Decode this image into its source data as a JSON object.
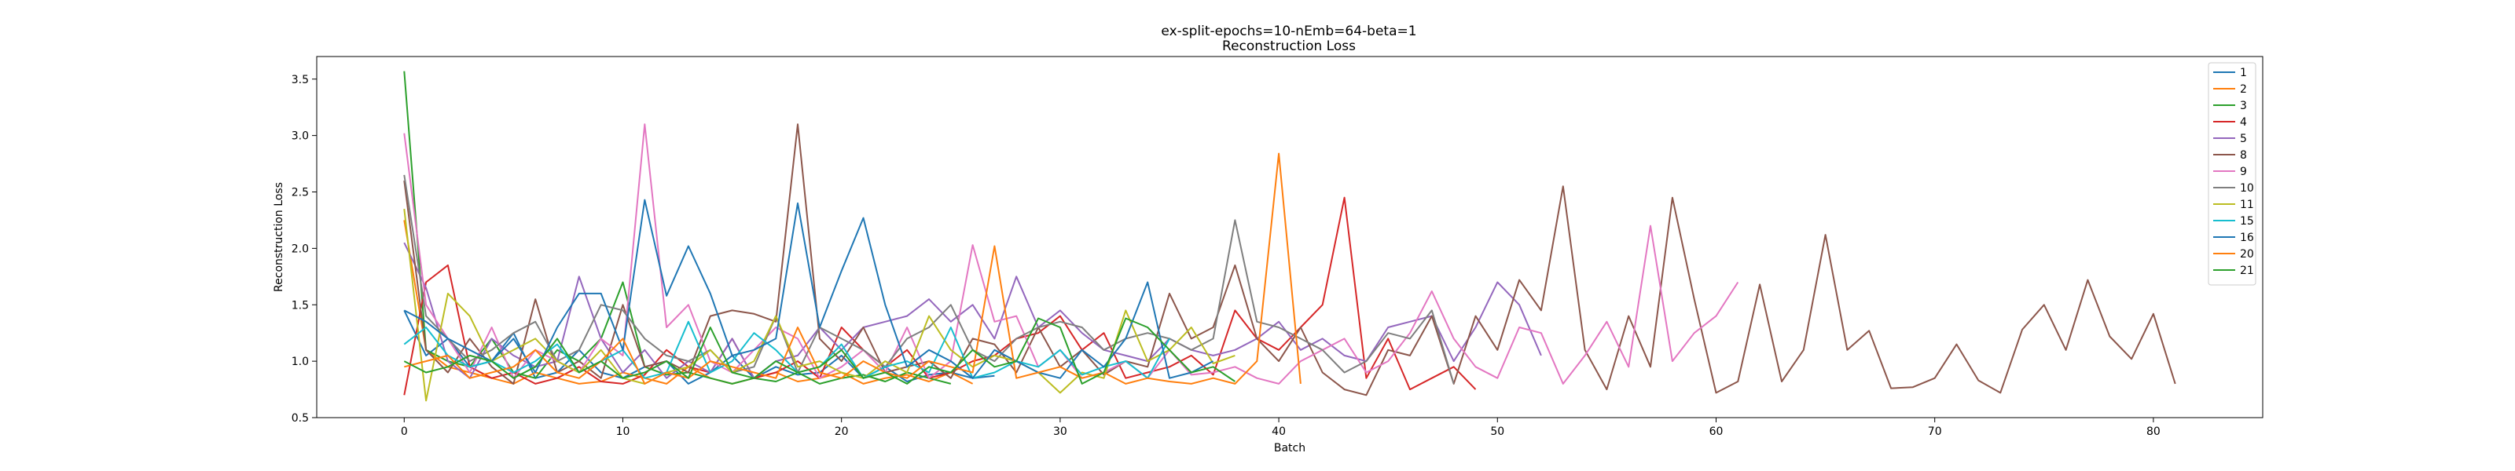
{
  "chart_data": {
    "type": "line",
    "title": "ex-split-epochs=10-nEmb=64-beta=1",
    "subtitle": "Reconstruction Loss",
    "xlabel": "Batch",
    "ylabel": "Reconstruction Loss",
    "xlim": [
      -4,
      85
    ],
    "ylim": [
      0.5,
      3.7
    ],
    "xticks": [
      0,
      10,
      20,
      30,
      40,
      50,
      60,
      70,
      80
    ],
    "yticks": [
      0.5,
      1.0,
      1.5,
      2.0,
      2.5,
      3.0,
      3.5
    ],
    "legend_position": "top-right",
    "grid": false,
    "series": [
      {
        "name": "1",
        "color": "#1f77b4",
        "values": [
          1.45,
          1.05,
          1.2,
          0.95,
          1.0,
          1.25,
          0.85,
          0.9,
          1.1,
          0.9,
          0.85,
          0.95,
          1.0,
          0.8,
          0.9,
          1.05,
          0.85,
          0.95,
          0.88,
          0.9,
          1.05,
          0.85,
          0.95,
          0.82,
          0.88,
          0.9,
          0.85,
          0.87
        ]
      },
      {
        "name": "2",
        "color": "#ff7f0e",
        "values": [
          2.25,
          1.1,
          0.95,
          0.9,
          0.85,
          0.8,
          0.9,
          0.85,
          0.8,
          0.82,
          0.9,
          0.85,
          0.8,
          0.95,
          0.85,
          0.8,
          0.85,
          0.9,
          0.82,
          0.85,
          0.9,
          0.8,
          0.85,
          0.88,
          0.82,
          0.9,
          0.8
        ]
      },
      {
        "name": "3",
        "color": "#2ca02c",
        "values": [
          3.57,
          1.1,
          1.0,
          0.95,
          1.2,
          0.9,
          0.85,
          1.1,
          1.0,
          1.2,
          1.7,
          0.95,
          0.88,
          0.9,
          0.85,
          0.8,
          0.85,
          0.82,
          0.9,
          0.8,
          0.85,
          0.88,
          0.82,
          0.9,
          0.85,
          0.8
        ]
      },
      {
        "name": "4",
        "color": "#d62728",
        "values": [
          0.7,
          1.7,
          1.85,
          0.95,
          0.85,
          0.9,
          0.8,
          0.85,
          0.95,
          0.82,
          0.8,
          0.88,
          1.1,
          0.95,
          0.9,
          1.2,
          0.85,
          0.9,
          1.0,
          0.85,
          1.3,
          1.1,
          0.95,
          1.1,
          0.85,
          0.9,
          1.0,
          1.05,
          1.2,
          1.25,
          1.4,
          1.1,
          1.25,
          0.85,
          0.9,
          0.95,
          1.05,
          0.88,
          1.45,
          1.2,
          1.1,
          1.3,
          1.5,
          2.45,
          0.85,
          1.2,
          0.75,
          0.85,
          0.95,
          0.75
        ]
      },
      {
        "name": "5",
        "color": "#9467bd",
        "values": [
          2.05,
          1.65,
          1.0,
          0.85,
          1.2,
          1.05,
          0.95,
          1.0,
          1.75,
          1.2,
          0.9,
          1.1,
          0.85,
          1.0,
          0.9,
          1.2,
          0.85,
          1.0,
          1.05,
          1.3,
          1.1,
          1.3,
          1.35,
          1.4,
          1.55,
          1.35,
          1.5,
          1.2,
          1.75,
          1.3,
          1.45,
          1.25,
          1.1,
          1.05,
          1.0,
          1.2,
          1.1,
          1.05,
          1.1,
          1.2,
          1.35,
          1.1,
          1.2,
          1.05,
          1.0,
          1.3,
          1.35,
          1.4,
          1.0,
          1.3,
          1.7,
          1.5,
          1.05
        ]
      },
      {
        "name": "8",
        "color": "#8c564b",
        "values": [
          2.6,
          1.1,
          0.9,
          1.2,
          0.95,
          0.8,
          1.55,
          0.9,
          1.0,
          0.85,
          1.5,
          0.95,
          1.0,
          0.9,
          1.4,
          1.45,
          1.42,
          1.35,
          3.1,
          1.2,
          1.0,
          1.3,
          0.9,
          0.95,
          1.0,
          0.85,
          1.2,
          1.15,
          0.9,
          1.3,
          0.95,
          1.1,
          0.88,
          1.0,
          0.95,
          1.6,
          1.2,
          1.3,
          1.85,
          1.2,
          1.0,
          1.3,
          0.9,
          0.75,
          0.7,
          1.1,
          1.05,
          1.4,
          0.8,
          1.4,
          1.1,
          1.72,
          1.45,
          2.55,
          1.1,
          0.75,
          1.4,
          0.95,
          2.45,
          1.55,
          0.72,
          0.82,
          1.68,
          0.82,
          1.1,
          2.12,
          1.1,
          1.27,
          0.76,
          0.77,
          0.85,
          1.15,
          0.83,
          0.72,
          1.28,
          1.5,
          1.1,
          1.72,
          1.22,
          1.02,
          1.42,
          0.8
        ]
      },
      {
        "name": "9",
        "color": "#e377c2",
        "values": [
          3.02,
          1.5,
          1.2,
          0.9,
          1.3,
          0.85,
          1.1,
          1.0,
          0.9,
          1.2,
          1.05,
          3.1,
          1.3,
          1.5,
          1.0,
          0.9,
          1.1,
          1.3,
          1.2,
          0.85,
          0.95,
          1.1,
          0.9,
          1.3,
          0.85,
          1.0,
          2.03,
          1.35,
          1.4,
          0.95,
          1.1,
          0.85,
          0.9,
          1.0,
          0.85,
          1.1,
          0.88,
          0.9,
          0.95,
          0.85,
          0.8,
          1.0,
          1.1,
          1.2,
          0.9,
          1.0,
          1.25,
          1.62,
          1.2,
          0.95,
          0.85,
          1.3,
          1.25,
          0.8,
          1.05,
          1.35,
          0.95,
          2.2,
          1.0,
          1.25,
          1.4,
          1.7
        ]
      },
      {
        "name": "10",
        "color": "#7f7f7f",
        "values": [
          2.65,
          1.4,
          1.2,
          1.0,
          1.1,
          1.25,
          1.35,
          1.0,
          1.1,
          1.5,
          1.45,
          1.2,
          1.05,
          1.0,
          1.1,
          0.9,
          0.95,
          1.4,
          0.9,
          1.3,
          1.2,
          1.1,
          0.95,
          1.2,
          1.3,
          1.5,
          1.1,
          1.0,
          1.2,
          1.3,
          1.35,
          1.3,
          1.1,
          1.2,
          1.25,
          1.2,
          1.1,
          1.2,
          2.25,
          1.35,
          1.3,
          1.2,
          1.1,
          0.9,
          1.0,
          1.25,
          1.2,
          1.45,
          0.8
        ]
      },
      {
        "name": "11",
        "color": "#bcbd22",
        "values": [
          2.35,
          0.65,
          1.6,
          1.4,
          1.0,
          1.1,
          1.2,
          1.0,
          0.9,
          1.1,
          0.85,
          0.8,
          0.9,
          0.95,
          1.1,
          0.9,
          1.0,
          1.4,
          0.95,
          1.0,
          0.9,
          0.85,
          1.0,
          0.9,
          1.4,
          1.1,
          0.95,
          1.05,
          1.0,
          0.9,
          0.72,
          0.9,
          0.85,
          1.45,
          1.0,
          1.1,
          1.3,
          0.98,
          1.05
        ]
      },
      {
        "name": "15",
        "color": "#17becf",
        "values": [
          1.15,
          1.3,
          1.05,
          0.95,
          1.0,
          0.9,
          1.0,
          1.15,
          0.9,
          1.0,
          1.1,
          0.85,
          0.9,
          1.35,
          0.9,
          1.0,
          1.25,
          1.1,
          0.9,
          0.95,
          1.15,
          0.85,
          0.95,
          1.0,
          0.9,
          1.3,
          0.85,
          0.9,
          1.0,
          0.95,
          1.1,
          0.88,
          0.95,
          1.0,
          0.85,
          1.2
        ]
      },
      {
        "name": "16",
        "color": "#1f77b4",
        "values": [
          1.45,
          1.35,
          1.2,
          1.1,
          1.0,
          1.2,
          0.9,
          1.3,
          1.6,
          1.6,
          1.1,
          2.43,
          1.58,
          2.02,
          1.6,
          1.05,
          1.1,
          1.2,
          2.4,
          1.3,
          1.8,
          2.27,
          1.5,
          0.95,
          1.1,
          1.0,
          0.85,
          1.1,
          1.0,
          0.9,
          0.85,
          1.1,
          0.95,
          1.2,
          1.7,
          0.85,
          0.9,
          1.0
        ]
      },
      {
        "name": "20",
        "color": "#ff7f0e",
        "values": [
          0.95,
          1.0,
          1.05,
          0.85,
          0.9,
          0.95,
          1.1,
          0.9,
          0.85,
          1.0,
          1.2,
          0.8,
          0.9,
          0.85,
          1.0,
          0.95,
          0.9,
          0.85,
          1.3,
          0.9,
          0.85,
          1.0,
          0.9,
          0.85,
          1.0,
          0.95,
          0.9,
          2.02,
          0.85,
          0.9,
          0.95,
          0.85,
          0.9,
          0.8,
          0.85,
          0.82,
          0.8,
          0.85,
          0.8,
          1.0,
          2.84,
          0.8
        ]
      },
      {
        "name": "21",
        "color": "#2ca02c",
        "values": [
          1.0,
          0.9,
          0.95,
          1.05,
          1.0,
          0.85,
          0.95,
          1.2,
          0.9,
          1.0,
          0.85,
          0.9,
          1.0,
          0.85,
          1.3,
          0.9,
          0.85,
          1.0,
          0.9,
          0.95,
          1.1,
          0.85,
          0.9,
          0.8,
          0.95,
          0.9,
          1.1,
          0.95,
          1.0,
          1.38,
          1.3,
          0.8,
          0.9,
          1.38,
          1.3,
          1.1,
          0.9,
          0.95,
          0.82
        ]
      }
    ]
  }
}
